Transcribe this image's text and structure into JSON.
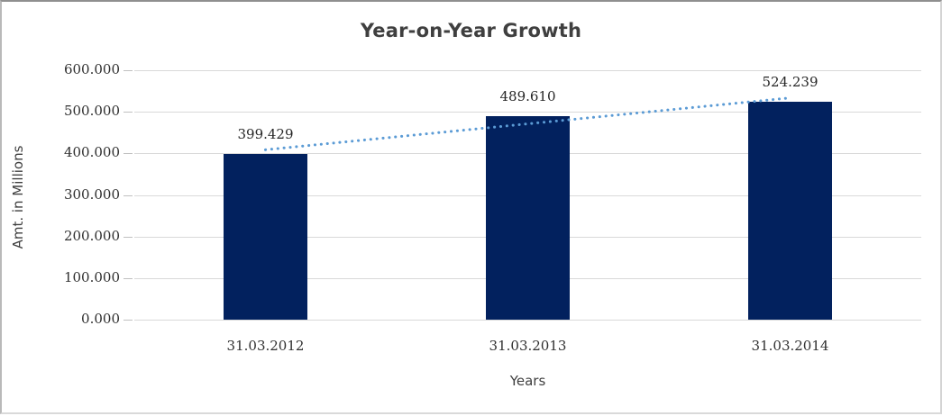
{
  "chart_data": {
    "type": "bar",
    "title": "Year-on-Year Growth",
    "xlabel": "Years",
    "ylabel": "Amt. in Millions",
    "categories": [
      "31.03.2012",
      "31.03.2013",
      "31.03.2014"
    ],
    "values": [
      399429,
      489610,
      524239
    ],
    "value_labels": [
      "399.429",
      "489.610",
      "524.239"
    ],
    "ylim": [
      0,
      600000
    ],
    "ytick_step": 100000,
    "ytick_labels": [
      "0.000",
      "100.000",
      "200.000",
      "300.000",
      "400.000",
      "500.000",
      "600.000"
    ],
    "grid": "horizontal",
    "legend": "none",
    "trendline": {
      "type": "linear",
      "style": "dotted"
    }
  },
  "colors": {
    "bar": "#02215e",
    "trendline": "#5b9bd5",
    "gridline": "#d9d9d9",
    "tick": "#c0c0c0",
    "text": "#303030",
    "title": "#3f3f3f"
  }
}
